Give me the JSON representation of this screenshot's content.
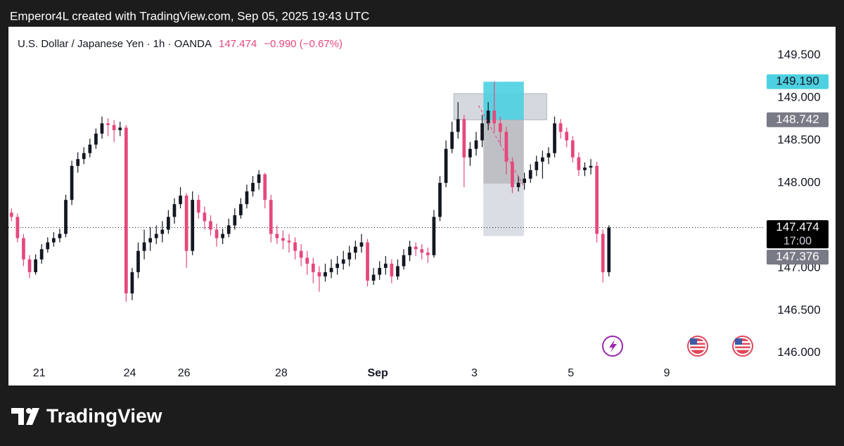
{
  "header": "Emperor4L created with TradingView.com, Sep 05, 2025 19:43 UTC",
  "brand": "TradingView",
  "chart_data": {
    "type": "candlestick",
    "title": "U.S. Dollar / Japanese Yen · 1h · OANDA",
    "quote": {
      "price": "147.474",
      "change": "−0.990 (−0.67%)"
    },
    "up_color": "#131722",
    "down_color": "#e5487a",
    "x": [
      0,
      1,
      2,
      3,
      4,
      5,
      6,
      7,
      8,
      9,
      10,
      11,
      12,
      13,
      14,
      15,
      16,
      17,
      18,
      19,
      20,
      21,
      22,
      23,
      24,
      25,
      26,
      27,
      28,
      29,
      30,
      31,
      32,
      33,
      34,
      35,
      36,
      37,
      38,
      39,
      40,
      41,
      42,
      43,
      44,
      45,
      46,
      47,
      48,
      49,
      50,
      51,
      52,
      53,
      54,
      55,
      56,
      57,
      58,
      59,
      60,
      61,
      62,
      63,
      64,
      65,
      66,
      67,
      68,
      69,
      70,
      71,
      72,
      73,
      74,
      75,
      76,
      77,
      78,
      79,
      80,
      81,
      82,
      83,
      84,
      85,
      86,
      87,
      88,
      89,
      90,
      91,
      92,
      93,
      94,
      95,
      96,
      97,
      98,
      99
    ],
    "ohlc": [
      [
        147.65,
        147.7,
        147.55,
        147.6
      ],
      [
        147.6,
        147.64,
        147.3,
        147.35
      ],
      [
        147.35,
        147.4,
        147.02,
        147.1
      ],
      [
        147.1,
        147.15,
        146.88,
        146.95
      ],
      [
        146.95,
        147.16,
        146.92,
        147.1
      ],
      [
        147.1,
        147.28,
        147.05,
        147.22
      ],
      [
        147.22,
        147.36,
        147.18,
        147.3
      ],
      [
        147.3,
        147.42,
        147.25,
        147.35
      ],
      [
        147.35,
        147.46,
        147.3,
        147.4
      ],
      [
        147.4,
        147.86,
        147.36,
        147.8
      ],
      [
        147.8,
        148.26,
        147.74,
        148.2
      ],
      [
        148.2,
        148.36,
        148.12,
        148.28
      ],
      [
        148.28,
        148.42,
        148.22,
        148.35
      ],
      [
        148.35,
        148.52,
        148.3,
        148.45
      ],
      [
        148.45,
        148.64,
        148.4,
        148.58
      ],
      [
        148.58,
        148.78,
        148.52,
        148.7
      ],
      [
        148.7,
        148.76,
        148.55,
        148.68
      ],
      [
        148.68,
        148.74,
        148.48,
        148.62
      ],
      [
        148.62,
        148.72,
        148.55,
        148.65
      ],
      [
        148.65,
        148.68,
        146.6,
        146.7
      ],
      [
        146.7,
        147.0,
        146.62,
        146.95
      ],
      [
        146.95,
        147.3,
        146.88,
        147.2
      ],
      [
        147.2,
        147.45,
        147.1,
        147.3
      ],
      [
        147.3,
        147.48,
        147.2,
        147.35
      ],
      [
        147.35,
        147.5,
        147.28,
        147.4
      ],
      [
        147.4,
        147.55,
        147.3,
        147.45
      ],
      [
        147.45,
        147.68,
        147.4,
        147.6
      ],
      [
        147.6,
        147.82,
        147.52,
        147.75
      ],
      [
        147.75,
        147.95,
        147.7,
        147.85
      ],
      [
        147.85,
        147.88,
        147.0,
        147.2
      ],
      [
        147.2,
        147.9,
        147.15,
        147.8
      ],
      [
        147.8,
        147.86,
        147.58,
        147.65
      ],
      [
        147.65,
        147.72,
        147.45,
        147.55
      ],
      [
        147.55,
        147.62,
        147.38,
        147.45
      ],
      [
        147.45,
        147.52,
        147.25,
        147.35
      ],
      [
        147.35,
        147.46,
        147.28,
        147.4
      ],
      [
        147.4,
        147.58,
        147.36,
        147.5
      ],
      [
        147.5,
        147.7,
        147.45,
        147.62
      ],
      [
        147.62,
        147.82,
        147.58,
        147.75
      ],
      [
        147.75,
        147.98,
        147.7,
        147.9
      ],
      [
        147.9,
        148.08,
        147.84,
        148.0
      ],
      [
        148.0,
        148.15,
        147.92,
        148.1
      ],
      [
        148.1,
        148.12,
        147.7,
        147.8
      ],
      [
        147.8,
        147.86,
        147.3,
        147.4
      ],
      [
        147.4,
        147.5,
        147.28,
        147.35
      ],
      [
        147.35,
        147.44,
        147.22,
        147.32
      ],
      [
        147.32,
        147.4,
        147.18,
        147.3
      ],
      [
        147.3,
        147.36,
        147.1,
        147.2
      ],
      [
        147.2,
        147.28,
        147.02,
        147.12
      ],
      [
        147.12,
        147.2,
        146.92,
        147.05
      ],
      [
        147.05,
        147.12,
        146.82,
        146.95
      ],
      [
        146.95,
        147.02,
        146.72,
        146.9
      ],
      [
        146.9,
        147.05,
        146.84,
        146.95
      ],
      [
        146.95,
        147.1,
        146.88,
        147.0
      ],
      [
        147.0,
        147.14,
        146.92,
        147.05
      ],
      [
        147.05,
        147.2,
        146.98,
        147.1
      ],
      [
        147.1,
        147.26,
        147.02,
        147.18
      ],
      [
        147.18,
        147.32,
        147.1,
        147.25
      ],
      [
        147.25,
        147.4,
        147.18,
        147.3
      ],
      [
        147.3,
        147.34,
        146.78,
        146.85
      ],
      [
        146.85,
        147.0,
        146.8,
        146.92
      ],
      [
        146.92,
        147.08,
        146.86,
        147.0
      ],
      [
        147.0,
        147.14,
        146.92,
        147.05
      ],
      [
        147.05,
        147.1,
        146.82,
        146.9
      ],
      [
        146.9,
        147.1,
        146.86,
        147.02
      ],
      [
        147.02,
        147.22,
        146.98,
        147.15
      ],
      [
        147.15,
        147.32,
        147.08,
        147.25
      ],
      [
        147.25,
        147.3,
        147.14,
        147.22
      ],
      [
        147.22,
        147.28,
        147.1,
        147.18
      ],
      [
        147.18,
        147.24,
        147.06,
        147.15
      ],
      [
        147.15,
        147.68,
        147.12,
        147.6
      ],
      [
        147.6,
        148.08,
        147.55,
        148.0
      ],
      [
        148.0,
        148.5,
        147.95,
        148.4
      ],
      [
        148.4,
        148.72,
        148.35,
        148.6
      ],
      [
        148.6,
        148.95,
        148.52,
        148.75
      ],
      [
        148.75,
        148.8,
        147.95,
        148.3
      ],
      [
        148.3,
        148.48,
        148.2,
        148.4
      ],
      [
        148.4,
        148.6,
        148.32,
        148.5
      ],
      [
        148.5,
        148.8,
        148.42,
        148.7
      ],
      [
        148.7,
        148.95,
        148.62,
        148.85
      ],
      [
        148.85,
        149.19,
        148.6,
        148.7
      ],
      [
        148.7,
        148.78,
        148.45,
        148.6
      ],
      [
        148.6,
        148.66,
        148.1,
        148.25
      ],
      [
        148.25,
        148.3,
        147.88,
        147.95
      ],
      [
        147.95,
        148.08,
        147.9,
        148.0
      ],
      [
        148.0,
        148.12,
        147.92,
        148.05
      ],
      [
        148.05,
        148.22,
        148.0,
        148.15
      ],
      [
        148.15,
        148.32,
        148.08,
        148.25
      ],
      [
        148.25,
        148.38,
        148.05,
        148.3
      ],
      [
        148.3,
        148.42,
        148.22,
        148.35
      ],
      [
        148.35,
        148.78,
        148.3,
        148.7
      ],
      [
        148.7,
        148.75,
        148.52,
        148.6
      ],
      [
        148.6,
        148.65,
        148.42,
        148.5
      ],
      [
        148.5,
        148.55,
        148.24,
        148.3
      ],
      [
        148.3,
        148.36,
        148.08,
        148.15
      ],
      [
        148.15,
        148.24,
        148.08,
        148.18
      ],
      [
        148.18,
        148.28,
        148.1,
        148.2
      ],
      [
        148.2,
        148.25,
        147.3,
        147.4
      ],
      [
        147.4,
        147.45,
        146.83,
        146.95
      ],
      [
        146.95,
        147.5,
        146.9,
        147.474
      ]
    ],
    "xlim": [
      0,
      125.4
    ],
    "xticks": [
      {
        "value": 5.1,
        "label": "21"
      },
      {
        "value": 20.1,
        "label": "24"
      },
      {
        "value": 29.1,
        "label": "26"
      },
      {
        "value": 45.2,
        "label": "28"
      },
      {
        "value": 61.2,
        "label": "Sep"
      },
      {
        "value": 77.2,
        "label": "3"
      },
      {
        "value": 93.2,
        "label": "5"
      },
      {
        "value": 109.1,
        "label": "9"
      }
    ],
    "ylim": [
      145.89,
      149.82
    ],
    "yticks": [
      {
        "value": 146,
        "label": "146.000"
      },
      {
        "value": 146.5,
        "label": "146.500"
      },
      {
        "value": 147,
        "label": "147.000"
      },
      {
        "value": 147.5,
        "label": "147.500"
      },
      {
        "value": 148,
        "label": "148.000"
      },
      {
        "value": 148.5,
        "label": "148.500"
      },
      {
        "value": 149,
        "label": "149.000"
      },
      {
        "value": 149.5,
        "label": "149.500"
      }
    ],
    "last_price": 147.474,
    "price_tags": [
      {
        "value": 149.19,
        "label": "149.190",
        "color": "#4dd0e1"
      },
      {
        "value": 148.742,
        "label": "148.742",
        "color": "#787b86"
      },
      {
        "value": 147.474,
        "label": "147.474",
        "sub": "17:00",
        "color": "#000000"
      },
      {
        "value": 147.376,
        "label": "147.376",
        "color": "#787b86"
      }
    ],
    "zone": {
      "x": [
        73.8,
        89.2
      ],
      "y": [
        148.742,
        149.05
      ]
    },
    "position": {
      "x": [
        78.7,
        85.4
      ],
      "entry": 148.742,
      "target": 149.19,
      "mid": 147.99,
      "stop": 147.376
    },
    "path": {
      "x": [
        77.9,
        85.4
      ],
      "y": [
        148.91,
        147.96
      ]
    }
  }
}
